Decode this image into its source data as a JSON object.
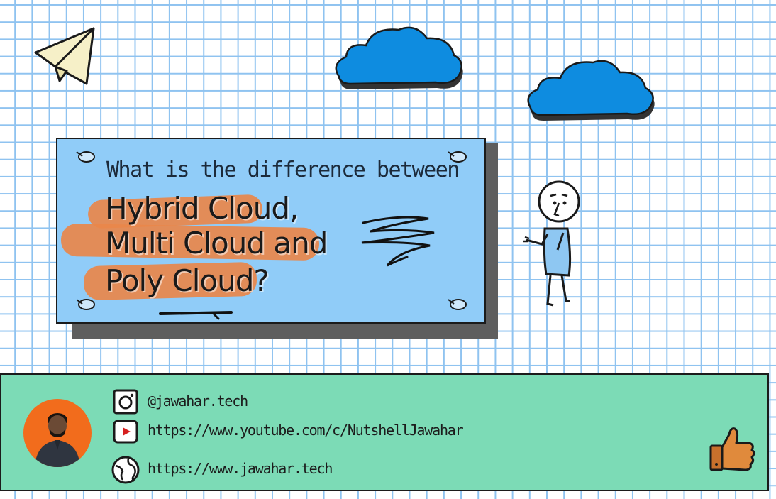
{
  "question": "What is the difference between",
  "titles": [
    "Hybrid Cloud,",
    "Multi Cloud and",
    "Poly Cloud?"
  ],
  "social": {
    "instagram": "@jawahar.tech",
    "youtube": "https://www.youtube.com/c/NutshellJawahar",
    "website": "https://www.jawahar.tech"
  },
  "colors": {
    "card": "#90ccf8",
    "footer": "#7cdbb6",
    "cloud": "#0e8ce0",
    "highlight": "#e9874a",
    "avatar_bg": "#f26c1c",
    "thumb": "#e08a3c"
  },
  "icons": [
    "paper-plane-icon",
    "cloud-icon",
    "instagram-icon",
    "youtube-icon",
    "globe-icon",
    "thumbs-up-icon"
  ]
}
